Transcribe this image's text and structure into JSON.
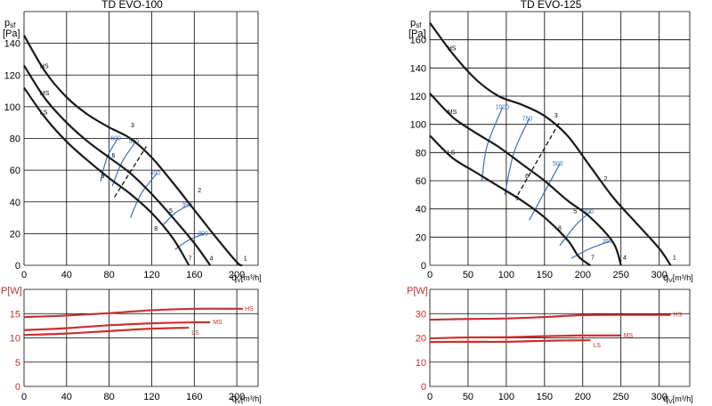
{
  "chart_data": [
    {
      "type": "line",
      "title": "TD EVO-100",
      "ylabel_main": "p",
      "ylabel_sub": "sf",
      "ylabel_unit": "[Pa]",
      "xlabel_main": "q",
      "xlabel_sub": "V",
      "xlabel_unit": "[m³/h]",
      "xlim": [
        0,
        220
      ],
      "ylim": [
        0,
        160
      ],
      "xticks": [
        0,
        40,
        80,
        120,
        160,
        200
      ],
      "yticks": [
        0,
        20,
        40,
        60,
        80,
        100,
        120,
        140
      ],
      "grid": true,
      "series": [
        {
          "name": "HS",
          "color": "#1a1a1a",
          "points": [
            [
              0,
              145
            ],
            [
              20,
              122
            ],
            [
              40,
              106
            ],
            [
              60,
              95
            ],
            [
              80,
              87
            ],
            [
              100,
              80
            ],
            [
              120,
              68
            ],
            [
              140,
              52
            ],
            [
              160,
              35
            ],
            [
              180,
              18
            ],
            [
              200,
              2
            ],
            [
              205,
              0
            ]
          ]
        },
        {
          "name": "MS",
          "color": "#1a1a1a",
          "points": [
            [
              0,
              126
            ],
            [
              20,
              105
            ],
            [
              40,
              90
            ],
            [
              60,
              78
            ],
            [
              80,
              68
            ],
            [
              100,
              58
            ],
            [
              120,
              45
            ],
            [
              140,
              30
            ],
            [
              160,
              14
            ],
            [
              175,
              0
            ]
          ]
        },
        {
          "name": "LS",
          "color": "#1a1a1a",
          "points": [
            [
              0,
              112
            ],
            [
              20,
              93
            ],
            [
              40,
              78
            ],
            [
              60,
              66
            ],
            [
              80,
              55
            ],
            [
              100,
              45
            ],
            [
              120,
              33
            ],
            [
              140,
              17
            ],
            [
              155,
              0
            ]
          ]
        }
      ],
      "rpm_curves": [
        {
          "label": "600",
          "color": "#3b6fb6",
          "points": [
            [
              72,
              53
            ],
            [
              78,
              68
            ],
            [
              88,
              80
            ]
          ]
        },
        {
          "label": "500",
          "color": "#3b6fb6",
          "points": [
            [
              83,
              50
            ],
            [
              92,
              65
            ],
            [
              105,
              78
            ]
          ]
        },
        {
          "label": "400",
          "color": "#3b6fb6",
          "points": [
            [
              100,
              30
            ],
            [
              110,
              45
            ],
            [
              125,
              58
            ]
          ]
        },
        {
          "label": "350",
          "color": "#3b6fb6",
          "points": [
            [
              130,
              25
            ],
            [
              142,
              33
            ],
            [
              155,
              38
            ]
          ]
        },
        {
          "label": "300",
          "color": "#3b6fb6",
          "points": [
            [
              142,
              10
            ],
            [
              155,
              16
            ],
            [
              170,
              20
            ]
          ]
        }
      ],
      "dashed": [
        [
          85,
          43
        ],
        [
          115,
          75
        ]
      ],
      "point_labels": [
        {
          "label": "1",
          "x": 208,
          "y": 3
        },
        {
          "label": "2",
          "x": 165,
          "y": 46
        },
        {
          "label": "3",
          "x": 102,
          "y": 87
        },
        {
          "label": "4",
          "x": 176,
          "y": 3
        },
        {
          "label": "5",
          "x": 138,
          "y": 33
        },
        {
          "label": "6",
          "x": 84,
          "y": 68
        },
        {
          "label": "7",
          "x": 156,
          "y": 3
        },
        {
          "label": "8",
          "x": 124,
          "y": 22
        },
        {
          "label": "9",
          "x": 74,
          "y": 55
        }
      ],
      "power_panel": {
        "ylabel_main": "P",
        "ylabel_unit": "[W]",
        "ylim": [
          0,
          20
        ],
        "yticks": [
          0,
          5,
          10,
          15
        ],
        "series": [
          {
            "name": "HS",
            "color": "#c8312e",
            "points": [
              [
                0,
                14.3
              ],
              [
                40,
                14.6
              ],
              [
                80,
                15.1
              ],
              [
                120,
                15.7
              ],
              [
                160,
                16.0
              ],
              [
                200,
                16.0
              ],
              [
                205,
                16.0
              ]
            ]
          },
          {
            "name": "MS",
            "color": "#c8312e",
            "points": [
              [
                0,
                11.6
              ],
              [
                40,
                12.0
              ],
              [
                80,
                12.6
              ],
              [
                120,
                13.0
              ],
              [
                160,
                13.2
              ],
              [
                175,
                13.2
              ]
            ]
          },
          {
            "name": "LS",
            "color": "#c8312e",
            "points": [
              [
                0,
                10.6
              ],
              [
                40,
                10.9
              ],
              [
                80,
                11.4
              ],
              [
                120,
                11.9
              ],
              [
                155,
                12.1
              ]
            ]
          }
        ]
      }
    },
    {
      "type": "line",
      "title": "TD EVO-125",
      "ylabel_main": "p",
      "ylabel_sub": "sf",
      "ylabel_unit": "[Pa]",
      "xlabel_main": "q",
      "xlabel_sub": "V",
      "xlabel_unit": "[m³/h]",
      "xlim": [
        0,
        340
      ],
      "ylim": [
        0,
        180
      ],
      "xticks": [
        0,
        50,
        100,
        150,
        200,
        250,
        300
      ],
      "yticks": [
        0,
        20,
        40,
        60,
        80,
        100,
        120,
        140,
        160
      ],
      "grid": true,
      "series": [
        {
          "name": "HS",
          "color": "#1a1a1a",
          "points": [
            [
              0,
              172
            ],
            [
              30,
              150
            ],
            [
              60,
              132
            ],
            [
              90,
              120
            ],
            [
              120,
              114
            ],
            [
              150,
              106
            ],
            [
              180,
              92
            ],
            [
              210,
              70
            ],
            [
              240,
              48
            ],
            [
              270,
              30
            ],
            [
              300,
              12
            ],
            [
              315,
              0
            ]
          ]
        },
        {
          "name": "MS",
          "color": "#1a1a1a",
          "points": [
            [
              0,
              122
            ],
            [
              30,
              105
            ],
            [
              60,
              94
            ],
            [
              90,
              84
            ],
            [
              120,
              72
            ],
            [
              150,
              60
            ],
            [
              180,
              46
            ],
            [
              210,
              34
            ],
            [
              240,
              16
            ],
            [
              250,
              0
            ]
          ]
        },
        {
          "name": "LS",
          "color": "#1a1a1a",
          "points": [
            [
              0,
              92
            ],
            [
              30,
              76
            ],
            [
              60,
              66
            ],
            [
              90,
              56
            ],
            [
              120,
              46
            ],
            [
              150,
              34
            ],
            [
              180,
              18
            ],
            [
              195,
              6
            ],
            [
              210,
              0
            ]
          ]
        }
      ],
      "rpm_curves": [
        {
          "label": "1000",
          "color": "#3b6fb6",
          "points": [
            [
              68,
              60
            ],
            [
              75,
              85
            ],
            [
              95,
              112
            ]
          ]
        },
        {
          "label": "750",
          "color": "#3b6fb6",
          "points": [
            [
              98,
              50
            ],
            [
              110,
              80
            ],
            [
              130,
              104
            ]
          ]
        },
        {
          "label": "500",
          "color": "#3b6fb6",
          "points": [
            [
              130,
              32
            ],
            [
              150,
              52
            ],
            [
              170,
              72
            ]
          ]
        },
        {
          "label": "400",
          "color": "#3b6fb6",
          "points": [
            [
              170,
              14
            ],
            [
              190,
              28
            ],
            [
              210,
              38
            ]
          ]
        },
        {
          "label": "350",
          "color": "#3b6fb6",
          "points": [
            [
              185,
              5
            ],
            [
              210,
              12
            ],
            [
              235,
              17
            ]
          ]
        }
      ],
      "dashed": [
        [
          115,
          50
        ],
        [
          170,
          102
        ]
      ],
      "point_labels": [
        {
          "label": "1",
          "x": 320,
          "y": 4
        },
        {
          "label": "2",
          "x": 230,
          "y": 60
        },
        {
          "label": "3",
          "x": 165,
          "y": 105
        },
        {
          "label": "4",
          "x": 255,
          "y": 4
        },
        {
          "label": "5",
          "x": 190,
          "y": 37
        },
        {
          "label": "6",
          "x": 127,
          "y": 62
        },
        {
          "label": "7",
          "x": 213,
          "y": 4
        },
        {
          "label": "8",
          "x": 170,
          "y": 25
        },
        {
          "label": "9",
          "x": 114,
          "y": 46
        }
      ],
      "power_panel": {
        "ylabel_main": "P",
        "ylabel_unit": "[W]",
        "ylim": [
          0,
          40
        ],
        "yticks": [
          0,
          10,
          20,
          30
        ],
        "series": [
          {
            "name": "HS",
            "color": "#c8312e",
            "points": [
              [
                0,
                27.5
              ],
              [
                50,
                27.8
              ],
              [
                100,
                28.0
              ],
              [
                150,
                28.6
              ],
              [
                200,
                29.4
              ],
              [
                250,
                29.5
              ],
              [
                300,
                29.5
              ],
              [
                315,
                29.5
              ]
            ]
          },
          {
            "name": "MS",
            "color": "#c8312e",
            "points": [
              [
                0,
                19.8
              ],
              [
                50,
                20.2
              ],
              [
                100,
                20.3
              ],
              [
                150,
                20.7
              ],
              [
                200,
                21.0
              ],
              [
                250,
                21.0
              ]
            ]
          },
          {
            "name": "LS",
            "color": "#c8312e",
            "points": [
              [
                0,
                18.3
              ],
              [
                50,
                18.4
              ],
              [
                100,
                18.4
              ],
              [
                150,
                18.8
              ],
              [
                200,
                19.0
              ],
              [
                210,
                19.0
              ]
            ]
          }
        ]
      }
    }
  ]
}
